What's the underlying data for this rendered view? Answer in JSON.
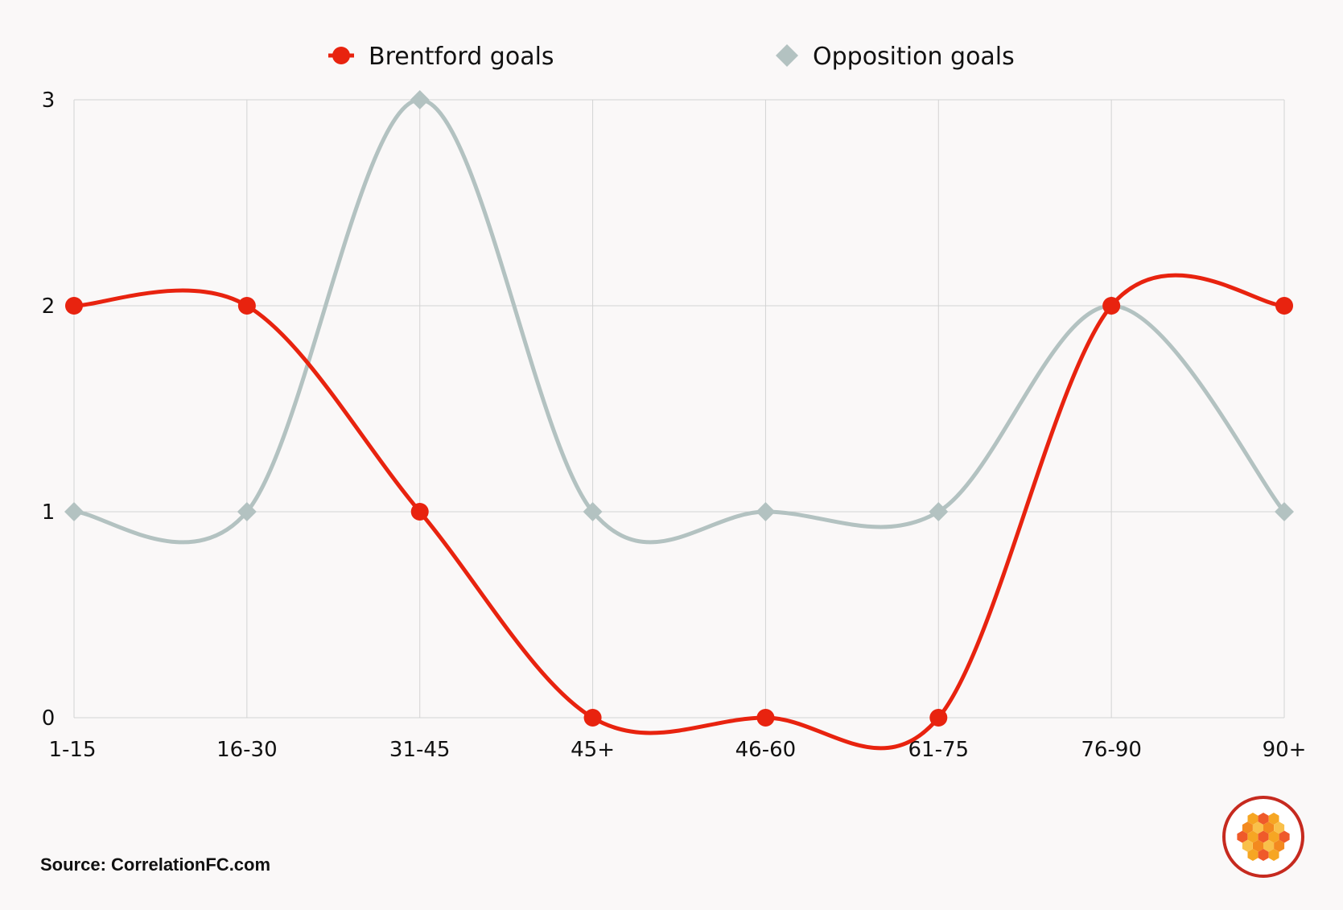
{
  "chart_data": {
    "type": "line",
    "categories": [
      "1-15",
      "16-30",
      "31-45",
      "45+",
      "46-60",
      "61-75",
      "76-90",
      "90+"
    ],
    "series": [
      {
        "name": "Brentford goals",
        "values": [
          2,
          2,
          1,
          0,
          0,
          0,
          2,
          2
        ],
        "color": "#e8230f",
        "marker": "circle"
      },
      {
        "name": "Opposition goals",
        "values": [
          1,
          1,
          3,
          1,
          1,
          1,
          2,
          1
        ],
        "color": "#b3c2c1",
        "marker": "diamond"
      }
    ],
    "ylim": [
      0,
      3
    ],
    "yticks": [
      "0",
      "1",
      "2",
      "3"
    ],
    "grid": true,
    "legend_position": "top-center",
    "smooth": true
  },
  "source": "Source: CorrelationFC.com",
  "logo_icon": "honeycomb-logo-icon",
  "colors": {
    "background": "#faf8f8",
    "grid": "#d3d3d3",
    "logo_ring": "#c62a1f"
  }
}
